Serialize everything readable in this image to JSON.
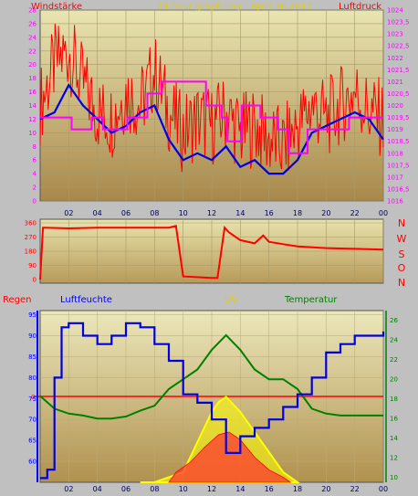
{
  "colors": {
    "wind": "#ff0000",
    "wind_avg": "#0000e0",
    "pressure": "#ff00ff",
    "direction": "#ff0000",
    "humidity": "#0000e0",
    "uv": "#ffff00",
    "temperature": "#008000",
    "rain": "#ff0000",
    "panel_bg": "#c0c0c0"
  },
  "chart_data": [
    {
      "type": "line",
      "title": "24 hour graph day : April 16 2017",
      "left_label": "Windstärke",
      "right_label": "Luftdruck",
      "x_ticks": [
        "02",
        "04",
        "06",
        "08",
        "10",
        "12",
        "14",
        "16",
        "18",
        "20",
        "22",
        "00"
      ],
      "left_ticks": [
        "0",
        "2",
        "4",
        "6",
        "8",
        "10",
        "12",
        "14",
        "16",
        "18",
        "20",
        "22",
        "24",
        "26",
        "28"
      ],
      "right_ticks": [
        "1016",
        "1016,5",
        "1017",
        "1017,5",
        "1018",
        "1018,5",
        "1019",
        "1019,5",
        "1020",
        "1020,5",
        "1021",
        "1021,5",
        "1022",
        "1022,5",
        "1023",
        "1023,5",
        "1024"
      ],
      "ylim_left": [
        0,
        28
      ],
      "ylim_right": [
        1016,
        1024
      ],
      "series": [
        {
          "name": "Windstärke",
          "x": [
            0,
            1,
            2,
            3,
            4,
            5,
            6,
            7,
            8,
            9,
            10,
            11,
            12,
            13,
            14,
            15,
            16,
            17,
            18,
            19,
            20,
            21,
            22,
            23,
            24
          ],
          "values": [
            14,
            20,
            22,
            17,
            13,
            12,
            16,
            14,
            19,
            13,
            10,
            12,
            11,
            13,
            10,
            11,
            9,
            8,
            11,
            14,
            12,
            14,
            16,
            13,
            12
          ]
        },
        {
          "name": "wind_avg",
          "x": [
            0,
            1,
            2,
            3,
            4,
            5,
            6,
            7,
            8,
            9,
            10,
            11,
            12,
            13,
            14,
            15,
            16,
            17,
            18,
            19,
            20,
            21,
            22,
            23,
            24
          ],
          "values": [
            12,
            13,
            17,
            14,
            12,
            10,
            11,
            13,
            14,
            9,
            6,
            7,
            6,
            8,
            5,
            6,
            4,
            4,
            6,
            10,
            11,
            12,
            13,
            12,
            9
          ]
        },
        {
          "name": "Luftdruck",
          "x": [
            0,
            1.4,
            2.2,
            3.6,
            4.4,
            5.3,
            6.1,
            7.5,
            8.5,
            9.6,
            10.7,
            11.6,
            12.7,
            13.1,
            14.1,
            15.4,
            16.6,
            17.4,
            18.7,
            20.2,
            21.6,
            22.6,
            24
          ],
          "values": [
            1019.5,
            1019.5,
            1019,
            1019.5,
            1019,
            1019,
            1019.5,
            1020.5,
            1021,
            1021,
            1021,
            1020,
            1019.5,
            1018.5,
            1020,
            1019.5,
            1019,
            1018,
            1019,
            1019,
            1019.5,
            1019.5,
            1019.5
          ]
        }
      ]
    },
    {
      "type": "line",
      "compass_labels": [
        "N",
        "W",
        "S",
        "O",
        "N"
      ],
      "y_ticks": [
        "0",
        "90",
        "180",
        "270",
        "360"
      ],
      "ylim": [
        0,
        360
      ],
      "series": [
        {
          "name": "direction",
          "x": [
            0,
            0.2,
            0.3,
            2,
            4,
            6,
            8,
            9,
            9.5,
            10,
            12,
            12.4,
            12.9,
            13.2,
            14,
            15,
            15.6,
            16,
            17,
            18,
            20,
            22,
            24
          ],
          "values": [
            0,
            330,
            330,
            325,
            330,
            330,
            330,
            330,
            340,
            20,
            10,
            10,
            330,
            300,
            250,
            230,
            280,
            240,
            225,
            210,
            200,
            195,
            190
          ]
        }
      ]
    },
    {
      "type": "line",
      "labels": {
        "rain": "Regen",
        "humidity": "Luftfeuchte",
        "uv": "UV",
        "temperature": "Temperatur"
      },
      "rain_zero_label": "0",
      "left_ticks": [
        "60",
        "65",
        "70",
        "75",
        "80",
        "85",
        "90",
        "95"
      ],
      "right_ticks": [
        "10",
        "12",
        "14",
        "16",
        "18",
        "20",
        "22",
        "24",
        "26"
      ],
      "ylim_left": [
        55,
        96
      ],
      "ylim_right": [
        9.5,
        27
      ],
      "series": [
        {
          "name": "Luftfeuchte",
          "x": [
            0,
            0.5,
            1,
            1.5,
            2,
            3,
            4,
            5,
            6,
            7,
            8,
            9,
            10,
            11,
            12,
            13,
            14,
            15,
            16,
            17,
            18,
            19,
            20,
            21,
            22,
            24
          ],
          "values": [
            56,
            58,
            80,
            92,
            93,
            90,
            88,
            90,
            93,
            92,
            88,
            84,
            76,
            74,
            70,
            62,
            66,
            68,
            70,
            73,
            76,
            80,
            86,
            88,
            90,
            91
          ]
        },
        {
          "name": "UV",
          "x": [
            7,
            8,
            9,
            10,
            11,
            12,
            12.5,
            13,
            14,
            15,
            16,
            17,
            18
          ],
          "values": [
            0,
            0,
            0.1,
            0.2,
            0.8,
            1.4,
            1.6,
            1.7,
            1.4,
            1.0,
            0.6,
            0.2,
            0
          ]
        },
        {
          "name": "Temperatur",
          "x": [
            0,
            1,
            2,
            3,
            4,
            5,
            6,
            7,
            8,
            9,
            10,
            11,
            12,
            13,
            14,
            15,
            16,
            17,
            18,
            19,
            20,
            21,
            22,
            24
          ],
          "values": [
            18.3,
            17,
            16.5,
            16.3,
            16,
            16,
            16.2,
            16.8,
            17.3,
            19,
            20,
            21,
            23,
            24.5,
            23,
            21,
            20,
            20,
            19,
            17,
            16.5,
            16.3,
            16.3,
            16.3
          ]
        }
      ]
    }
  ]
}
